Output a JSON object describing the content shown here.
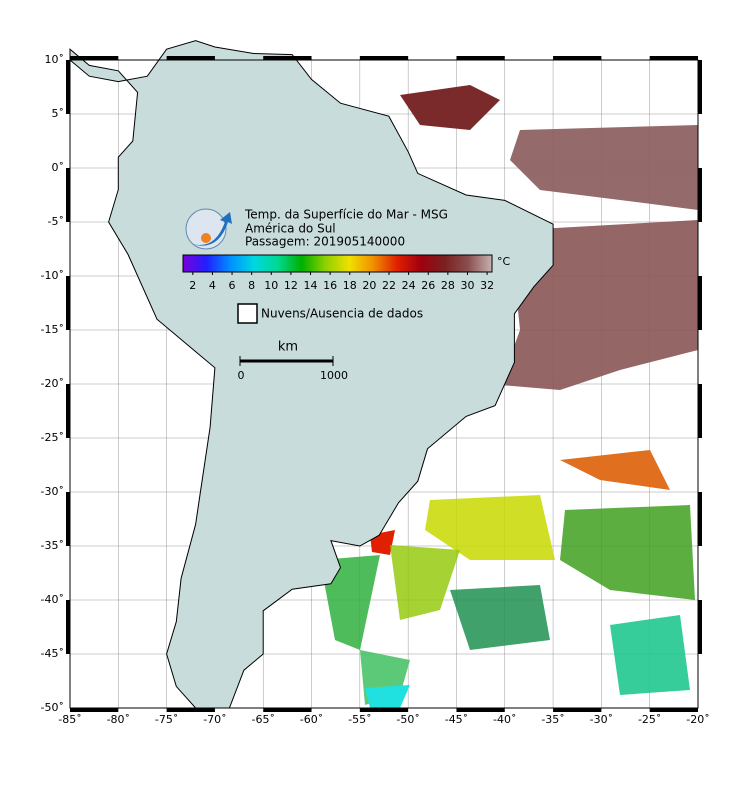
{
  "map": {
    "title": "Temp. da Superfície do Mar - MSG",
    "region": "América do Sul",
    "pass": "Passagem: 201905140000",
    "colorbar": {
      "unit": "°C",
      "ticks": [
        2,
        4,
        6,
        8,
        10,
        12,
        14,
        16,
        18,
        20,
        22,
        24,
        26,
        28,
        30,
        32
      ],
      "lim": [
        1,
        32.5
      ],
      "colors": [
        "#7a00d9",
        "#2020ff",
        "#0090ff",
        "#00d8e0",
        "#00d890",
        "#00b000",
        "#90d000",
        "#f0e000",
        "#f09000",
        "#e02000",
        "#a00010",
        "#7a2020",
        "#8a5050",
        "#c8b0b0"
      ]
    },
    "legend": "Nuvens/Ausencia de dados",
    "scale": {
      "unit": "km",
      "start": "0",
      "end": "1000"
    },
    "xticks": [
      {
        "value": -85,
        "label": "-85˚"
      },
      {
        "value": -80,
        "label": "-80˚"
      },
      {
        "value": -75,
        "label": "-75˚"
      },
      {
        "value": -70,
        "label": "-70˚"
      },
      {
        "value": -65,
        "label": "-65˚"
      },
      {
        "value": -60,
        "label": "-60˚"
      },
      {
        "value": -55,
        "label": "-55˚"
      },
      {
        "value": -50,
        "label": "-50˚"
      },
      {
        "value": -45,
        "label": "-45˚"
      },
      {
        "value": -40,
        "label": "-40˚"
      },
      {
        "value": -35,
        "label": "-35˚"
      },
      {
        "value": -30,
        "label": "-30˚"
      },
      {
        "value": -25,
        "label": "-25˚"
      },
      {
        "value": -20,
        "label": "-20˚"
      }
    ],
    "yticks": [
      {
        "value": 10,
        "label": "10˚"
      },
      {
        "value": 5,
        "label": "5˚"
      },
      {
        "value": 0,
        "label": "0˚"
      },
      {
        "value": -5,
        "label": "-5˚"
      },
      {
        "value": -10,
        "label": "-10˚"
      },
      {
        "value": -15,
        "label": "-15˚"
      },
      {
        "value": -20,
        "label": "-20˚"
      },
      {
        "value": -25,
        "label": "-25˚"
      },
      {
        "value": -30,
        "label": "-30˚"
      },
      {
        "value": -35,
        "label": "-35˚"
      },
      {
        "value": -40,
        "label": "-40˚"
      },
      {
        "value": -45,
        "label": "-45˚"
      },
      {
        "value": -50,
        "label": "-50˚"
      }
    ]
  }
}
